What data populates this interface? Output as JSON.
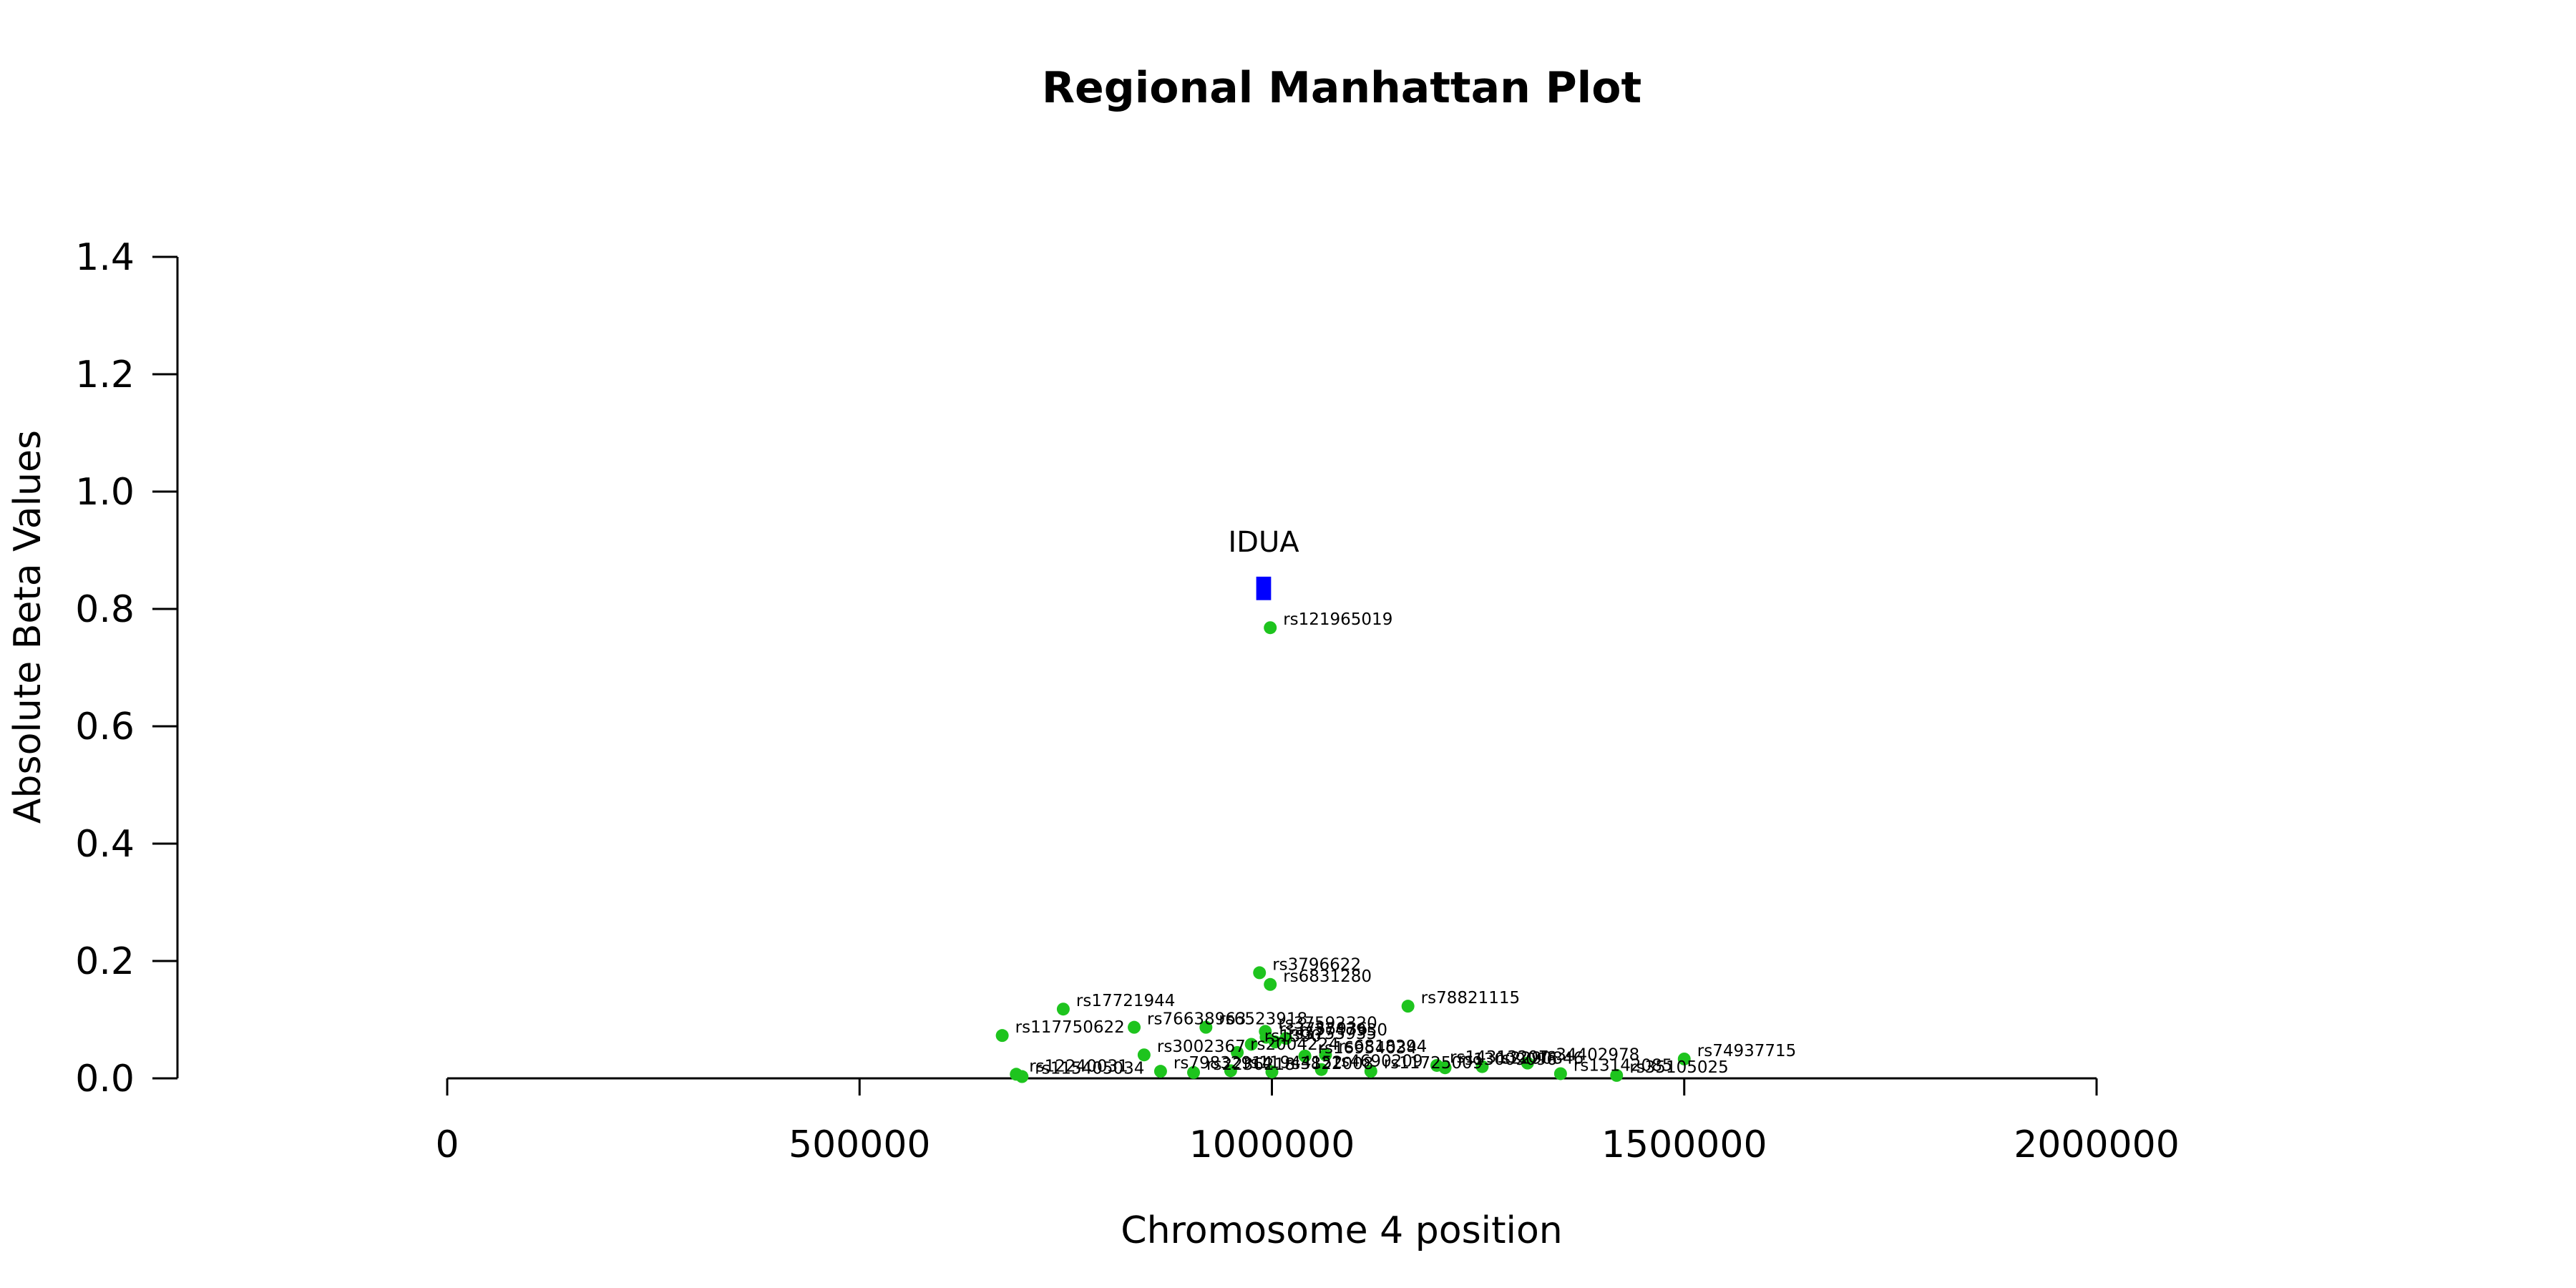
{
  "chart_data": {
    "type": "scatter",
    "title": "Regional Manhattan Plot",
    "xlabel": "Chromosome 4 position",
    "ylabel": "Absolute Beta Values",
    "xlim": [
      0,
      2000000
    ],
    "ylim": [
      0,
      1.4
    ],
    "x_ticks": [
      0,
      500000,
      1000000,
      1500000,
      2000000
    ],
    "x_tick_labels": [
      "0",
      "500000",
      "1000000",
      "1500000",
      "2000000"
    ],
    "y_ticks": [
      0,
      0.2,
      0.4,
      0.6,
      0.8,
      1.0,
      1.2,
      1.4
    ],
    "y_tick_labels": [
      "0.0",
      "0.2",
      "0.4",
      "0.6",
      "0.8",
      "1.0",
      "1.2",
      "1.4"
    ],
    "grid": false,
    "colors": {
      "points": "#1ec41e",
      "gene": "#0000ff",
      "axis": "#000000"
    },
    "gene": {
      "label": "IDUA",
      "start": 981000,
      "end": 999000,
      "y_low": 0.815,
      "y_high": 0.855
    },
    "points": [
      {
        "x": 998000,
        "y": 0.768,
        "label": "rs121965019"
      },
      {
        "x": 985000,
        "y": 0.18,
        "label": "rs3796622"
      },
      {
        "x": 998000,
        "y": 0.16,
        "label": "rs6831280"
      },
      {
        "x": 1165000,
        "y": 0.123,
        "label": "rs78821115"
      },
      {
        "x": 747000,
        "y": 0.118,
        "label": "rs17721944"
      },
      {
        "x": 833000,
        "y": 0.087,
        "label": "rs76638963"
      },
      {
        "x": 920000,
        "y": 0.087,
        "label": "rs6523918"
      },
      {
        "x": 992000,
        "y": 0.08,
        "label": "rs37592320"
      },
      {
        "x": 993000,
        "y": 0.07,
        "label": "rs3755936"
      },
      {
        "x": 1017000,
        "y": 0.068,
        "label": "rs3747930"
      },
      {
        "x": 673000,
        "y": 0.073,
        "label": "rs117750622"
      },
      {
        "x": 975000,
        "y": 0.058,
        "label": "rs1390"
      },
      {
        "x": 1004000,
        "y": 0.062,
        "label": "rs3755935"
      },
      {
        "x": 845000,
        "y": 0.04,
        "label": "rs3002367"
      },
      {
        "x": 958000,
        "y": 0.044,
        "label": "rs2004224"
      },
      {
        "x": 1040000,
        "y": 0.038,
        "label": "rs16954034"
      },
      {
        "x": 1065000,
        "y": 0.04,
        "label": "rs6818294"
      },
      {
        "x": 1500000,
        "y": 0.033,
        "label": "rs74937715"
      },
      {
        "x": 1310000,
        "y": 0.026,
        "label": "rs34402978"
      },
      {
        "x": 1200000,
        "y": 0.022,
        "label": "rs14313207"
      },
      {
        "x": 1210000,
        "y": 0.018,
        "label": "rs13009096"
      },
      {
        "x": 1255000,
        "y": 0.02,
        "label": "rs2290846"
      },
      {
        "x": 1350000,
        "y": 0.008,
        "label": "rs13142085"
      },
      {
        "x": 1418000,
        "y": 0.005,
        "label": "rs35105025"
      },
      {
        "x": 690000,
        "y": 0.007,
        "label": "rs12240031"
      },
      {
        "x": 697000,
        "y": 0.003,
        "label": "rs115405034"
      },
      {
        "x": 865000,
        "y": 0.012,
        "label": "rs79832914"
      },
      {
        "x": 905000,
        "y": 0.01,
        "label": "rs2236218"
      },
      {
        "x": 950000,
        "y": 0.013,
        "label": "rs11944152"
      },
      {
        "x": 1000000,
        "y": 0.011,
        "label": "rs3822008"
      },
      {
        "x": 1060000,
        "y": 0.015,
        "label": "rs4690209"
      },
      {
        "x": 1120000,
        "y": 0.012,
        "label": "rs11725009"
      }
    ]
  }
}
